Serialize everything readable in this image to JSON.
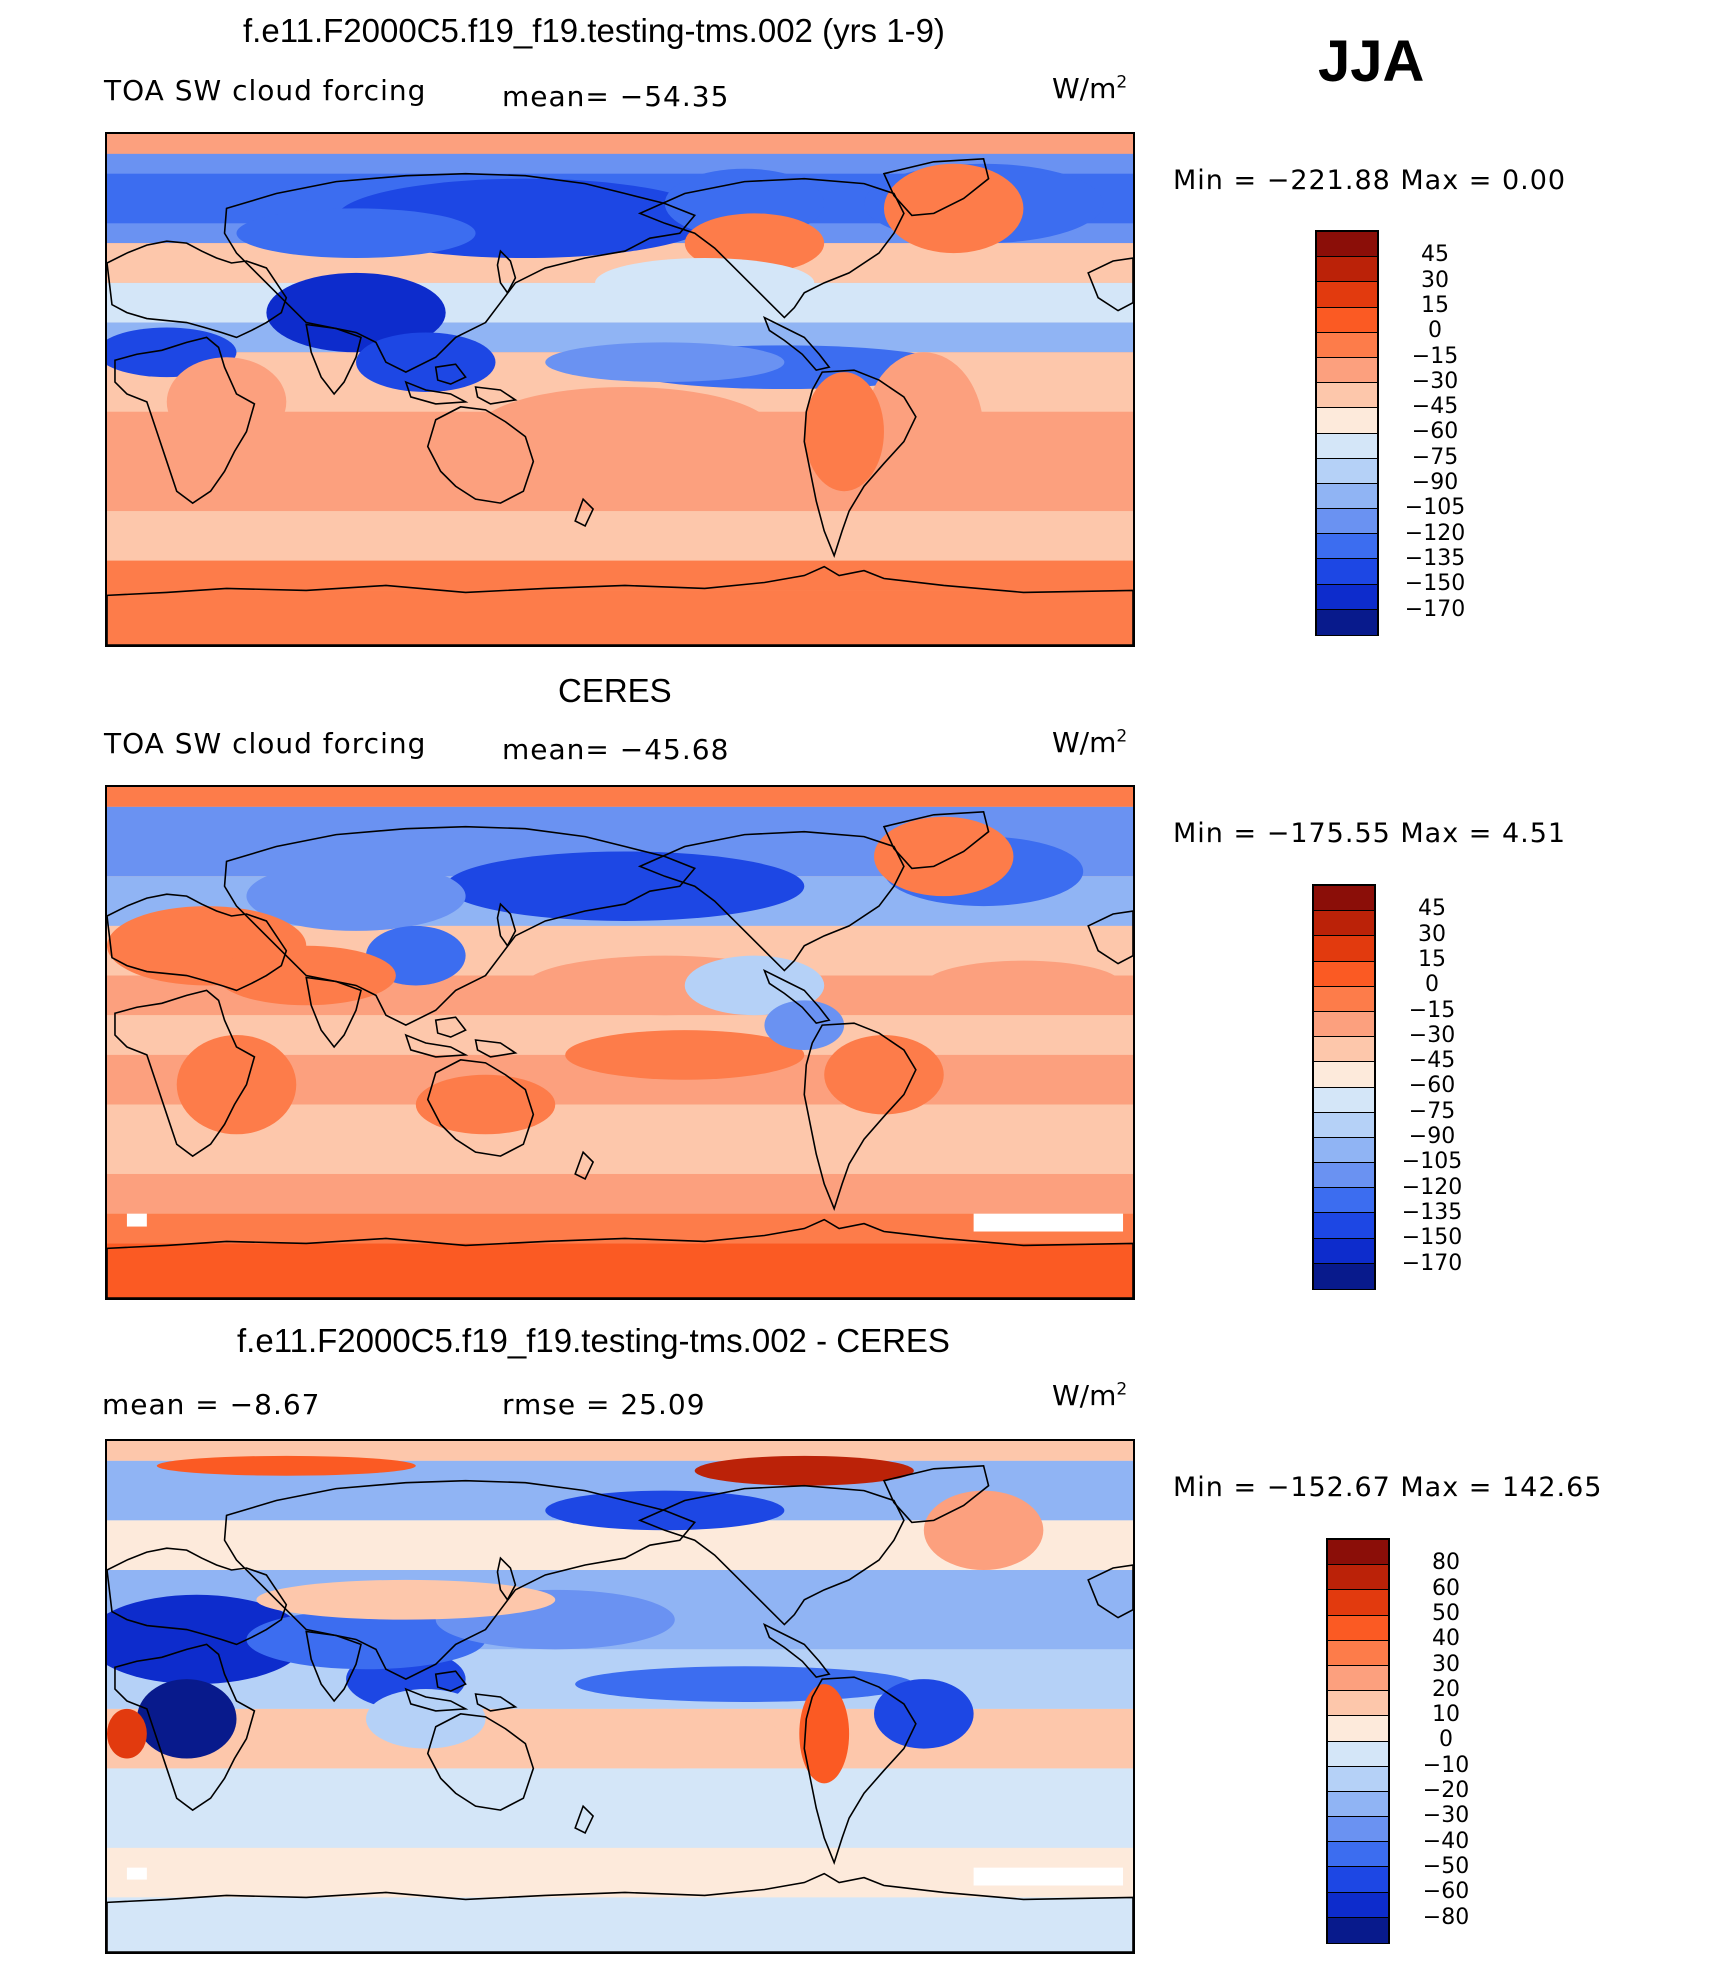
{
  "season": "JJA",
  "panels": [
    {
      "id": "model",
      "title": "f.e11.F2000C5.f19_f19.testing-tms.002 (yrs 1-9)",
      "left_label": "TOA SW cloud forcing",
      "center_label": "mean= −54.35",
      "units": "W/m",
      "units_sup": "2",
      "minmax": "Min  =  −221.88  Max  =      0.00",
      "colorbar": {
        "labels": [
          "45",
          "30",
          "15",
          "0",
          "−15",
          "−30",
          "−45",
          "−60",
          "−75",
          "−90",
          "−105",
          "−120",
          "−135",
          "−150",
          "−170"
        ],
        "colors": [
          "#8b0e08",
          "#bb2208",
          "#e23a0e",
          "#fb5a23",
          "#fd7c4a",
          "#fca07e",
          "#fdc7ab",
          "#fdeadb",
          "#d4e6f8",
          "#b5d1f7",
          "#90b4f4",
          "#6a92f2",
          "#3c6df0",
          "#1d47e4",
          "#0d2ccc",
          "#081a8c"
        ]
      },
      "pattern": "model"
    },
    {
      "id": "obs",
      "title": "CERES",
      "left_label": "TOA SW cloud forcing",
      "center_label": "mean= −45.68",
      "units": "W/m",
      "units_sup": "2",
      "minmax": "Min  =  −175.55  Max  =      4.51",
      "colorbar": {
        "labels": [
          "45",
          "30",
          "15",
          "0",
          "−15",
          "−30",
          "−45",
          "−60",
          "−75",
          "−90",
          "−105",
          "−120",
          "−135",
          "−150",
          "−170"
        ],
        "colors": [
          "#8b0e08",
          "#bb2208",
          "#e23a0e",
          "#fb5a23",
          "#fd7c4a",
          "#fca07e",
          "#fdc7ab",
          "#fdeadb",
          "#d4e6f8",
          "#b5d1f7",
          "#90b4f4",
          "#6a92f2",
          "#3c6df0",
          "#1d47e4",
          "#0d2ccc",
          "#081a8c"
        ]
      },
      "pattern": "obs"
    },
    {
      "id": "diff",
      "title": "f.e11.F2000C5.f19_f19.testing-tms.002 - CERES",
      "left_label": "mean =    −8.67",
      "center_label": "rmse =    25.09",
      "units": "W/m",
      "units_sup": "2",
      "minmax": "Min  =  −152.67  Max  =  142.65",
      "colorbar": {
        "labels": [
          "80",
          "60",
          "50",
          "40",
          "30",
          "20",
          "10",
          "0",
          "−10",
          "−20",
          "−30",
          "−40",
          "−50",
          "−60",
          "−80"
        ],
        "colors": [
          "#8b0e08",
          "#bb2208",
          "#e23a0e",
          "#fb5a23",
          "#fd7c4a",
          "#fca07e",
          "#fdc7ab",
          "#fdeadb",
          "#d4e6f8",
          "#b5d1f7",
          "#90b4f4",
          "#6a92f2",
          "#3c6df0",
          "#1d47e4",
          "#0d2ccc",
          "#081a8c"
        ]
      },
      "pattern": "diff"
    }
  ]
}
